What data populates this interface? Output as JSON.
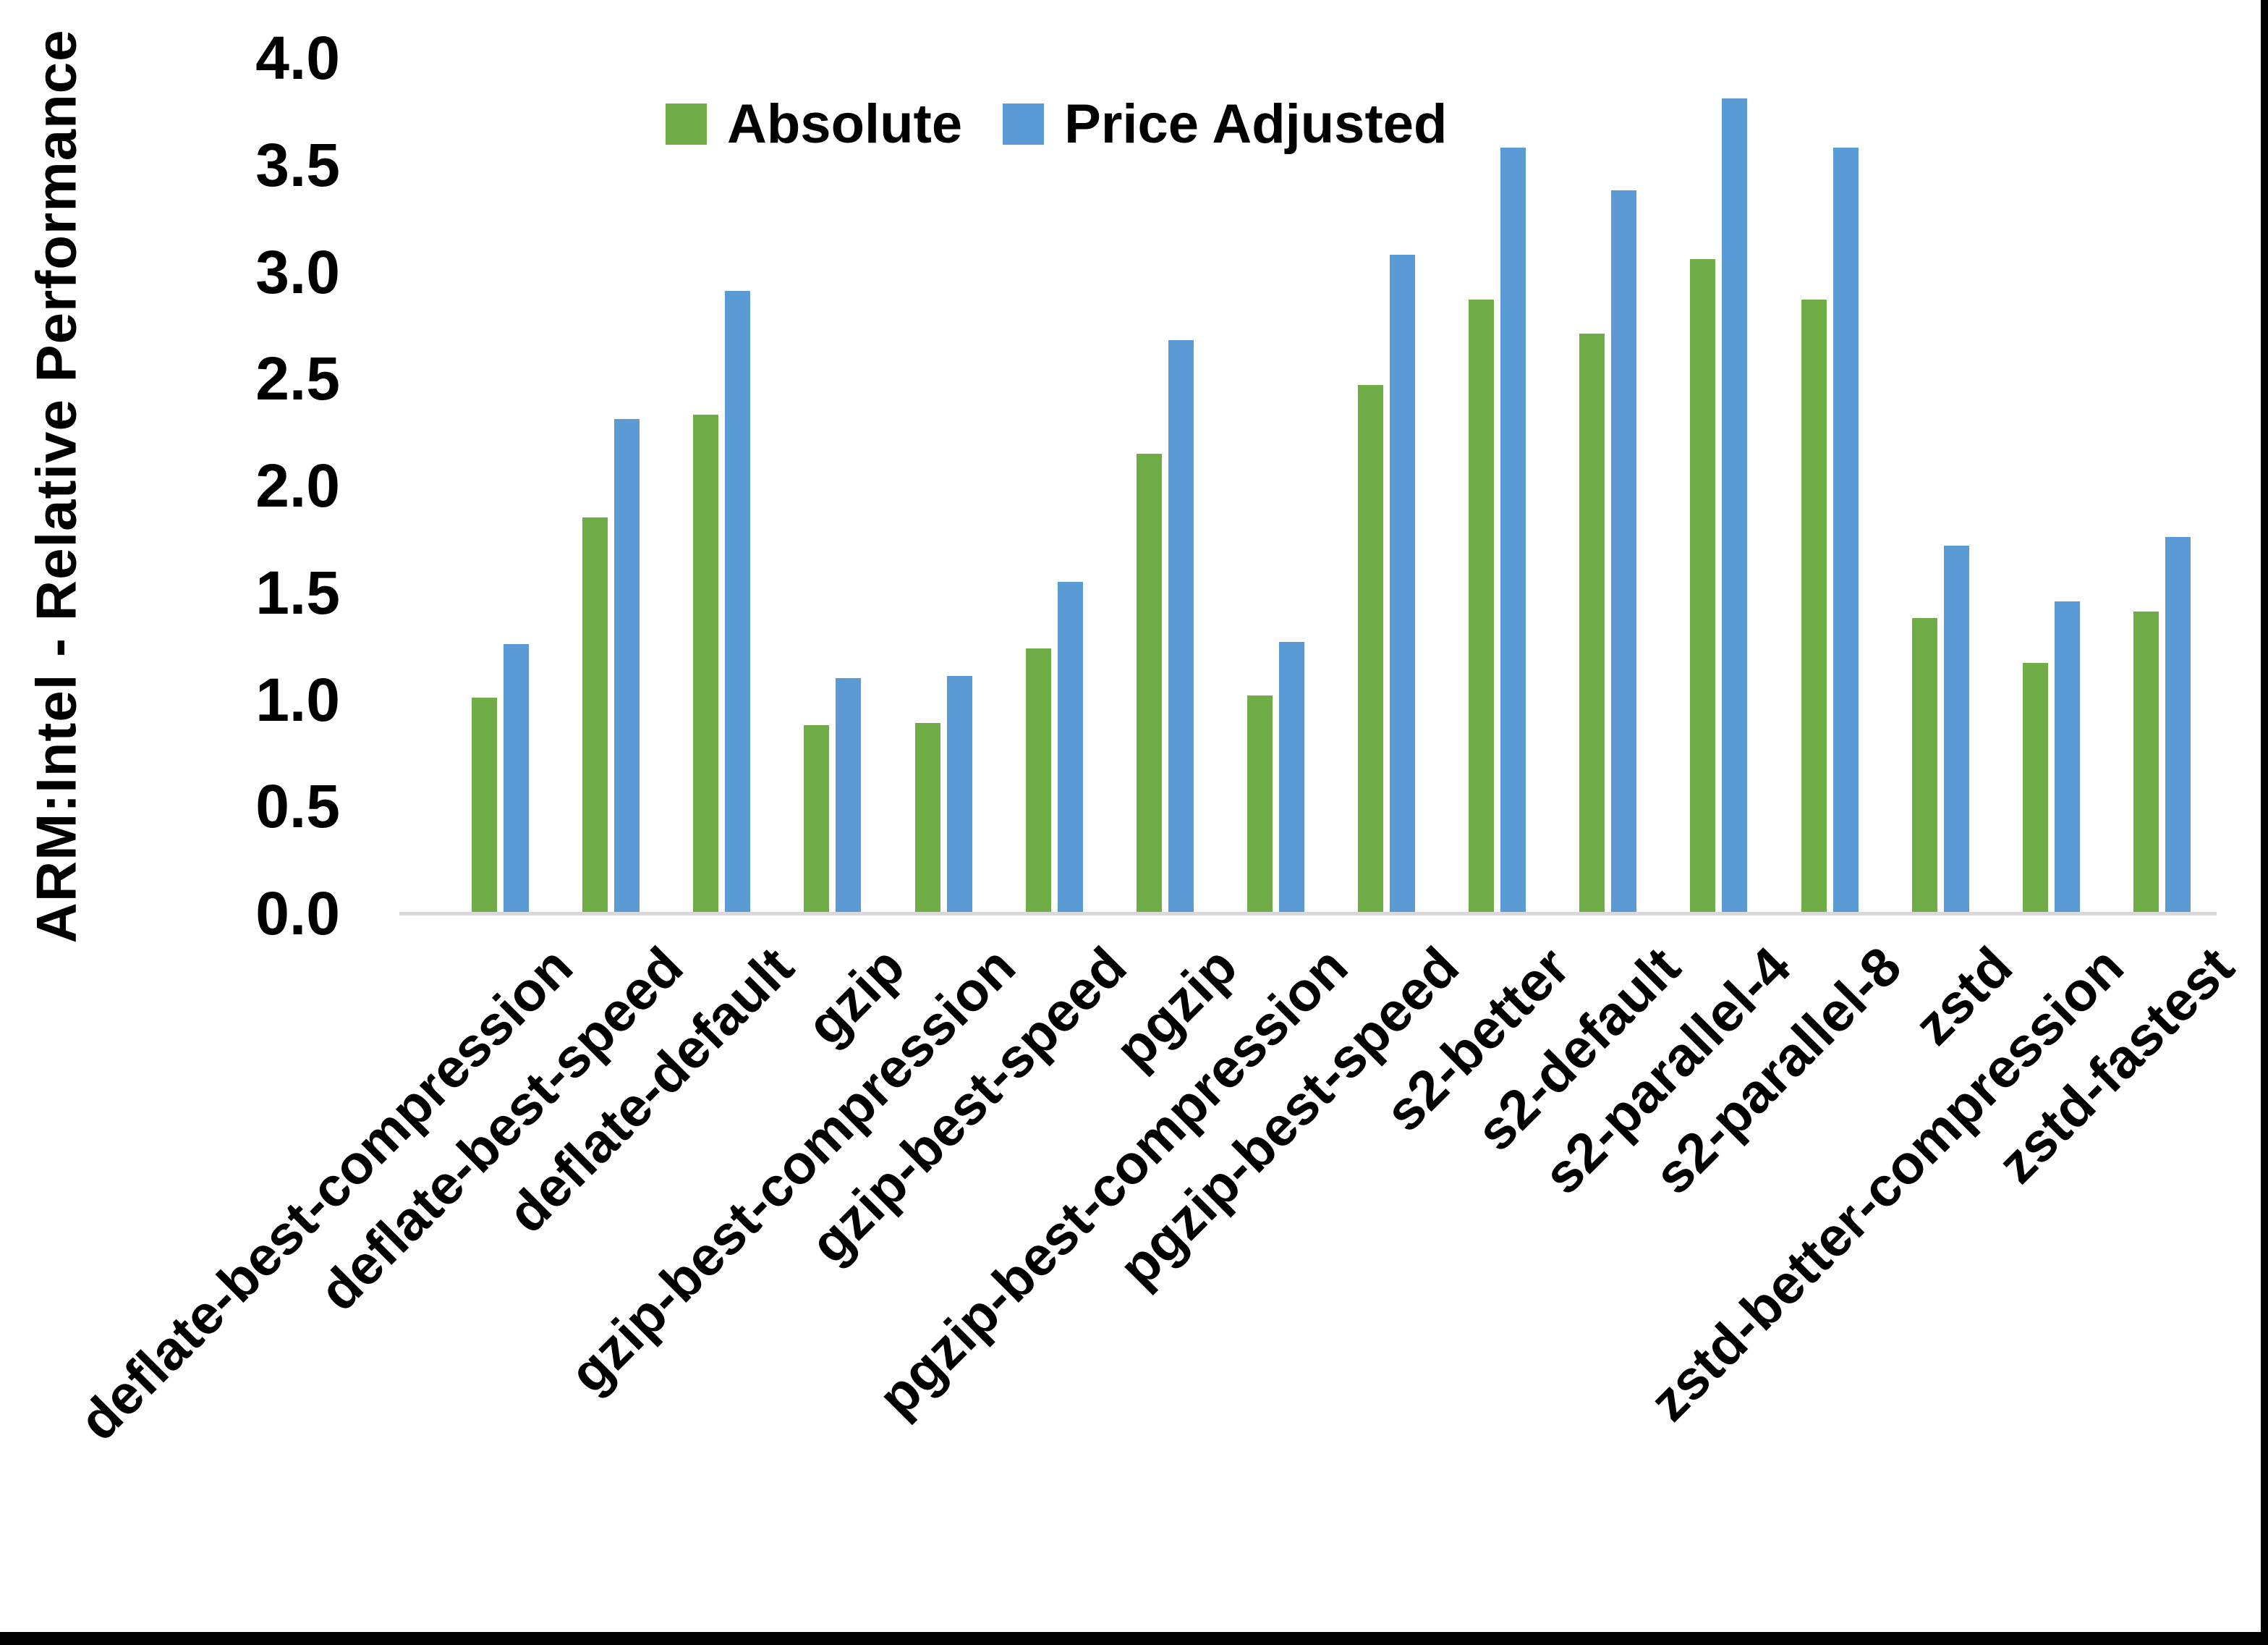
{
  "figure": {
    "y_axis_title": "ARM:Intel - Relative Performance"
  },
  "legend": {
    "items": [
      {
        "label": "Absolute",
        "color": "#70ad47"
      },
      {
        "label": "Price Adjusted",
        "color": "#5b9bd5"
      }
    ]
  },
  "chart_data": {
    "type": "bar",
    "title": "",
    "xlabel": "",
    "ylabel": "ARM:Intel - Relative Performance",
    "ylim": [
      0.0,
      4.0
    ],
    "ytick_step": 0.5,
    "yticks": [
      "0.0",
      "0.5",
      "1.0",
      "1.5",
      "2.0",
      "2.5",
      "3.0",
      "3.5",
      "4.0"
    ],
    "grid": false,
    "legend_position": "top-center",
    "bar_colors": {
      "Absolute": "#70ad47",
      "Price Adjusted": "#5b9bd5"
    },
    "baseline_color": "#d9d9d9",
    "categories": [
      "deflate-best-compression",
      "deflate-best-speed",
      "deflate-default",
      "gzip",
      "gzip-best-compression",
      "gzip-best-speed",
      "pgzip",
      "pgzip-best-compression",
      "pgzip-best-speed",
      "s2-better",
      "s2-default",
      "s2-parallel-4",
      "s2-parallel-8",
      "zstd",
      "zstd-better-compression",
      "zstd-fastest"
    ],
    "series": [
      {
        "name": "Absolute",
        "color": "#70ad47",
        "values": [
          1.01,
          1.85,
          2.33,
          0.88,
          0.89,
          1.24,
          2.15,
          1.02,
          2.47,
          2.87,
          2.71,
          3.06,
          2.87,
          1.38,
          1.17,
          1.41
        ]
      },
      {
        "name": "Price Adjusted",
        "color": "#5b9bd5",
        "values": [
          1.26,
          2.31,
          2.91,
          1.1,
          1.11,
          1.55,
          2.68,
          1.27,
          3.08,
          3.58,
          3.38,
          3.81,
          3.58,
          1.72,
          1.46,
          1.76
        ]
      }
    ]
  }
}
